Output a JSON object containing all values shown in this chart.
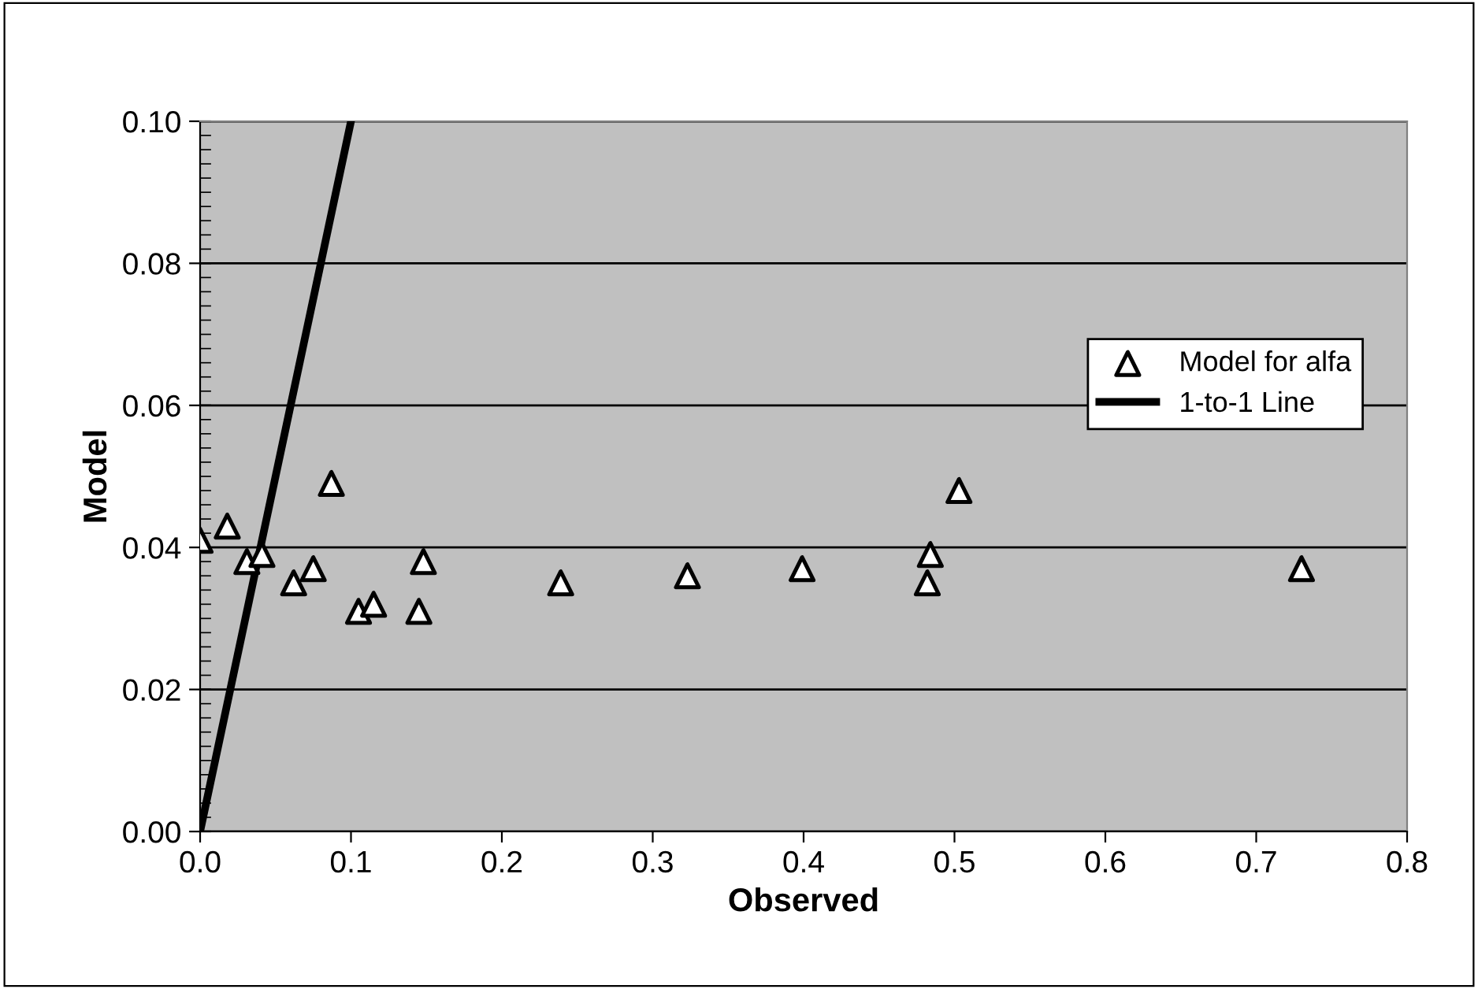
{
  "chart_data": {
    "type": "scatter",
    "xlabel": "Observed",
    "ylabel": "Model",
    "series": [
      {
        "name": "Model for alfa",
        "type": "scatter",
        "color": "#ffffff",
        "marker": "triangle",
        "x": [
          0.0,
          0.018,
          0.031,
          0.041,
          0.062,
          0.075,
          0.087,
          0.105,
          0.115,
          0.145,
          0.148,
          0.239,
          0.323,
          0.399,
          0.482,
          0.484,
          0.503,
          0.73
        ],
        "values": [
          0.041,
          0.043,
          0.038,
          0.039,
          0.035,
          0.037,
          0.049,
          0.031,
          0.032,
          0.031,
          0.038,
          0.035,
          0.036,
          0.037,
          0.035,
          0.039,
          0.048,
          0.037
        ]
      },
      {
        "name": "1-to-1 Line",
        "type": "line",
        "color": "#000000",
        "marker": "none",
        "line_style": "solid",
        "x": [
          0.0,
          0.1
        ],
        "values": [
          0.0,
          0.1
        ]
      }
    ],
    "xlim": [
      0,
      0.8
    ],
    "xticks": [
      {
        "value": 0,
        "label": "0.0"
      },
      0.1,
      0.2,
      0.3,
      0.4,
      0.5,
      0.6,
      0.7,
      0.8
    ],
    "ylim": [
      0,
      0.1
    ],
    "yticks": [
      {
        "value": 0,
        "label": "0.00"
      },
      0.02,
      0.04,
      0.06,
      0.08,
      {
        "value": 0.1,
        "label": "0.10"
      }
    ],
    "grid": "y",
    "legend": "right"
  }
}
